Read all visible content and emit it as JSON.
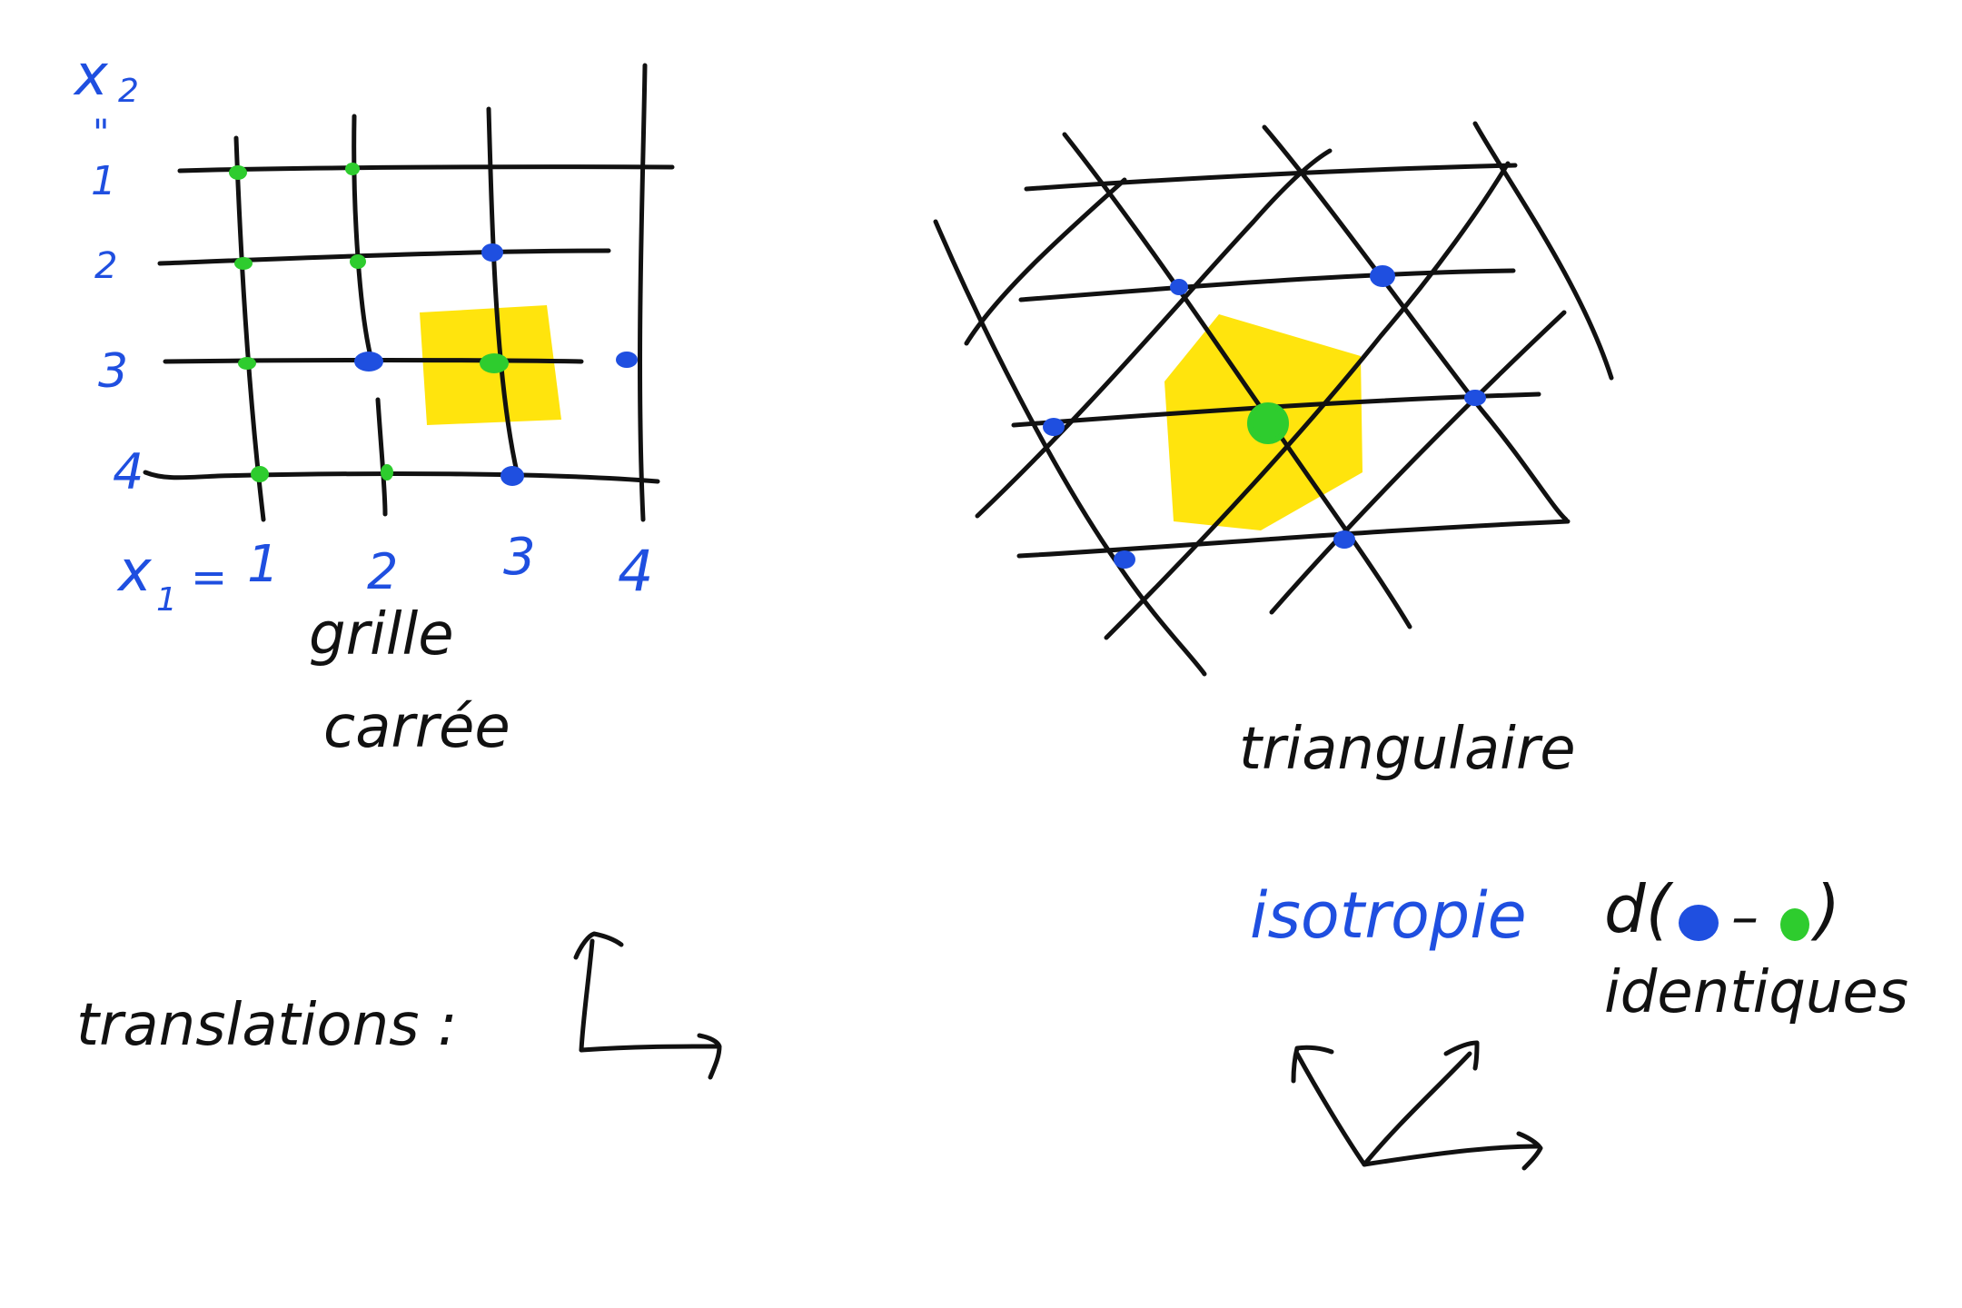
{
  "square_grid": {
    "axis_x2": "x",
    "axis_x2_sub": "2",
    "equals_vertical": "\"",
    "axis_x1": "x",
    "axis_x1_sub": "1",
    "axis_x1_eq": "=",
    "row_labels": [
      "1",
      "2",
      "3",
      "4"
    ],
    "col_labels": [
      "1",
      "2",
      "3",
      "4"
    ],
    "caption_line1": "grille",
    "caption_line2": "carrée"
  },
  "triangular_grid": {
    "caption": "triangulaire"
  },
  "translations_label": "translations :",
  "isotropy_label": "isotropie",
  "distance_note": {
    "prefix": "d(",
    "dash": "–",
    "suffix": ")",
    "line2": "identiques"
  },
  "colors": {
    "ink": "#111111",
    "blue": "#1f4fe0",
    "green": "#2ecc2e",
    "yellow": "#ffe300"
  }
}
